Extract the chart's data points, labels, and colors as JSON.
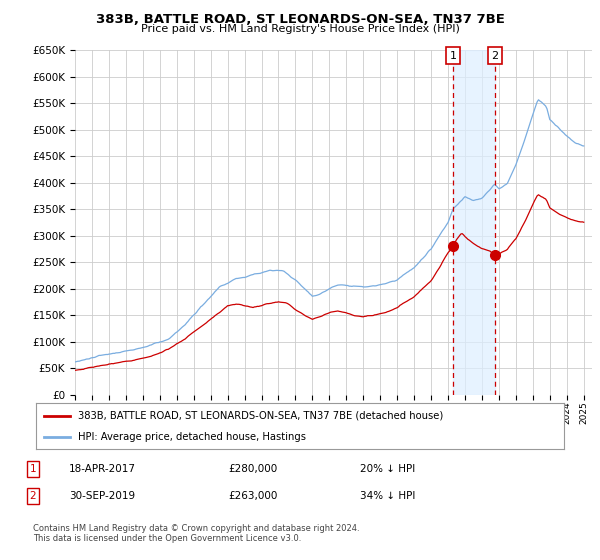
{
  "title": "383B, BATTLE ROAD, ST LEONARDS-ON-SEA, TN37 7BE",
  "subtitle": "Price paid vs. HM Land Registry's House Price Index (HPI)",
  "legend_label_red": "383B, BATTLE ROAD, ST LEONARDS-ON-SEA, TN37 7BE (detached house)",
  "legend_label_blue": "HPI: Average price, detached house, Hastings",
  "sale1_date": "18-APR-2017",
  "sale1_price": "£280,000",
  "sale1_pct": "20% ↓ HPI",
  "sale1_year": 2017.29,
  "sale1_value": 280000,
  "sale2_date": "30-SEP-2019",
  "sale2_price": "£263,000",
  "sale2_pct": "34% ↓ HPI",
  "sale2_year": 2019.75,
  "sale2_value": 263000,
  "footer": "Contains HM Land Registry data © Crown copyright and database right 2024.\nThis data is licensed under the Open Government Licence v3.0.",
  "ylim": [
    0,
    650000
  ],
  "xlim_start": 1995.0,
  "xlim_end": 2025.5,
  "background_color": "#ffffff",
  "grid_color": "#cccccc",
  "red_color": "#cc0000",
  "blue_color": "#7aade0",
  "shade_color": "#ddeeff",
  "marker_box_color": "#cc0000"
}
